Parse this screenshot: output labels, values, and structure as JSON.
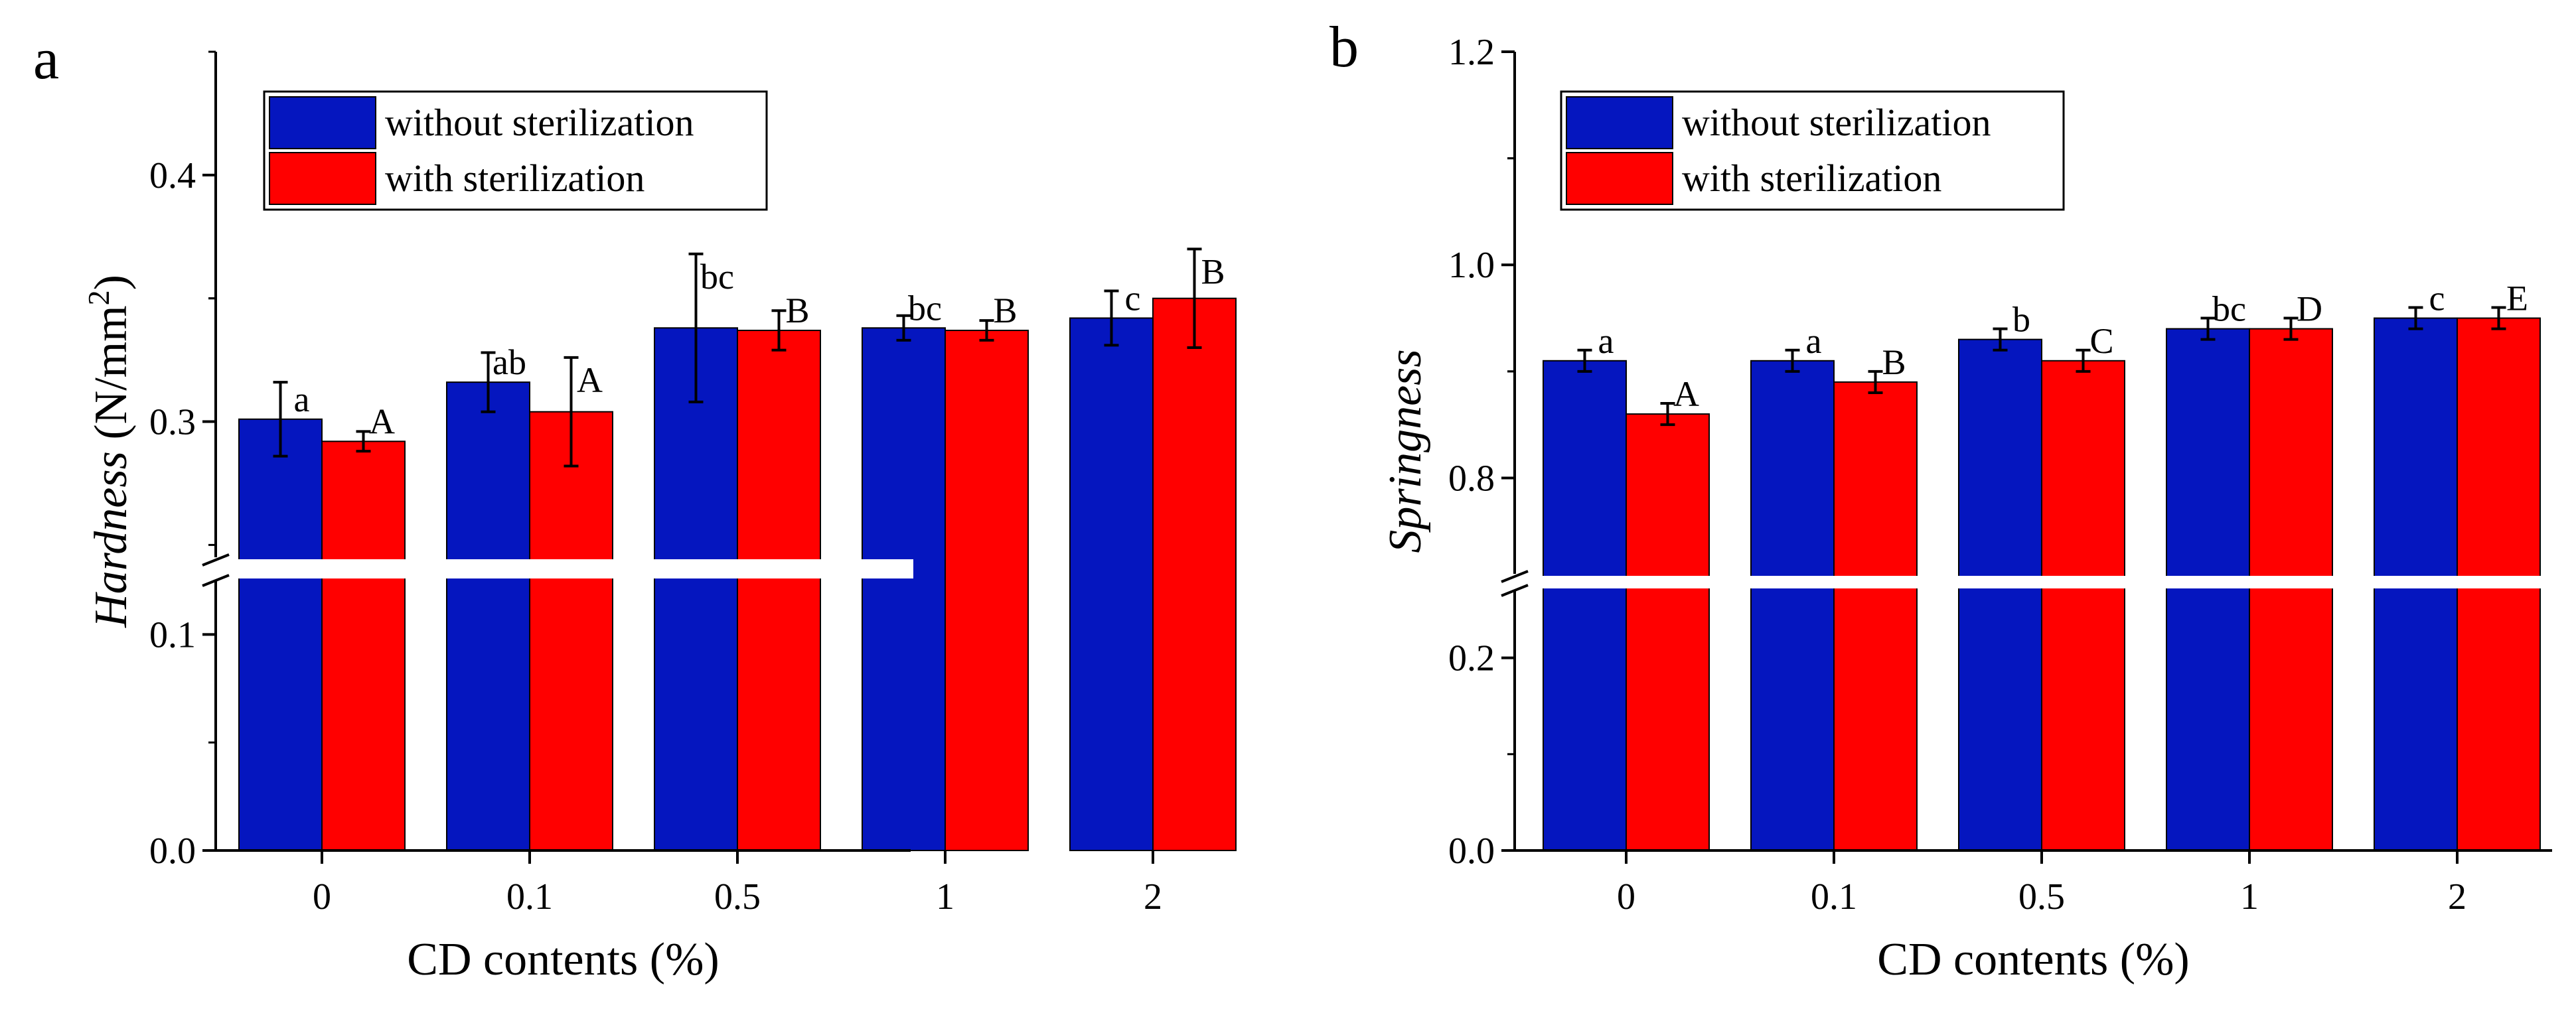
{
  "categories": [
    "0",
    "0.1",
    "0.5",
    "1",
    "2"
  ],
  "colors": {
    "without_sterilization": "#0516bf",
    "with_sterilization": "#ff0000",
    "axis": "#000000",
    "break_gap": "#ffffff"
  },
  "chart_data": [
    {
      "panel_label": "a",
      "type": "bar",
      "categories": [
        "0",
        "0.1",
        "0.5",
        "1",
        "2"
      ],
      "xlabel": "CD contents (%)",
      "ylabel_italic": "Hardness",
      "ylabel_unit": "(N/mm",
      "ylabel_superscript": "2",
      "ylabel_close": ")",
      "broken_axis": true,
      "lower_segment": {
        "ylim": [
          0.0,
          0.125
        ],
        "ticks": [
          "0.0",
          "0.1"
        ],
        "tick_values": [
          0.0,
          0.1
        ]
      },
      "upper_segment": {
        "ylim": [
          0.245,
          0.45
        ],
        "ticks": [
          "0.3",
          "0.4"
        ],
        "tick_values": [
          0.3,
          0.4
        ]
      },
      "legend": {
        "placement": "top-left",
        "entries": [
          "without sterilization",
          "with sterilization"
        ]
      },
      "series": [
        {
          "name": "without sterilization",
          "values": [
            0.301,
            0.316,
            0.338,
            0.338,
            0.342
          ],
          "errors": [
            0.015,
            0.012,
            0.03,
            0.005,
            0.011
          ],
          "labels": [
            "a",
            "ab",
            "bc",
            "bc",
            "c"
          ]
        },
        {
          "name": "with sterilization",
          "values": [
            0.292,
            0.304,
            0.337,
            0.337,
            0.35
          ],
          "errors": [
            0.004,
            0.022,
            0.008,
            0.004,
            0.02
          ],
          "labels": [
            "A",
            "A",
            "B",
            "B",
            "B"
          ]
        }
      ]
    },
    {
      "panel_label": "b",
      "type": "bar",
      "categories": [
        "0",
        "0.1",
        "0.5",
        "1",
        "2"
      ],
      "xlabel": "CD contents (%)",
      "ylabel_italic": "Springness",
      "broken_axis": true,
      "lower_segment": {
        "ylim": [
          0.0,
          0.27
        ],
        "ticks": [
          "0.0",
          "0.2"
        ],
        "tick_values": [
          0.0,
          0.2
        ]
      },
      "upper_segment": {
        "ylim": [
          0.71,
          1.2
        ],
        "ticks": [
          "0.8",
          "1.0",
          "1.2"
        ],
        "tick_values": [
          0.8,
          1.0,
          1.2
        ]
      },
      "legend": {
        "placement": "top-left",
        "entries": [
          "without sterilization",
          "with sterilization"
        ]
      },
      "series": [
        {
          "name": "without sterilization",
          "values": [
            0.91,
            0.91,
            0.93,
            0.94,
            0.95
          ],
          "errors": [
            0.01,
            0.01,
            0.01,
            0.01,
            0.01
          ],
          "labels": [
            "a",
            "a",
            "b",
            "bc",
            "c"
          ]
        },
        {
          "name": "with sterilization",
          "values": [
            0.86,
            0.89,
            0.91,
            0.94,
            0.95
          ],
          "errors": [
            0.01,
            0.01,
            0.01,
            0.01,
            0.01
          ],
          "labels": [
            "A",
            "B",
            "C",
            "D",
            "E"
          ]
        }
      ]
    }
  ]
}
